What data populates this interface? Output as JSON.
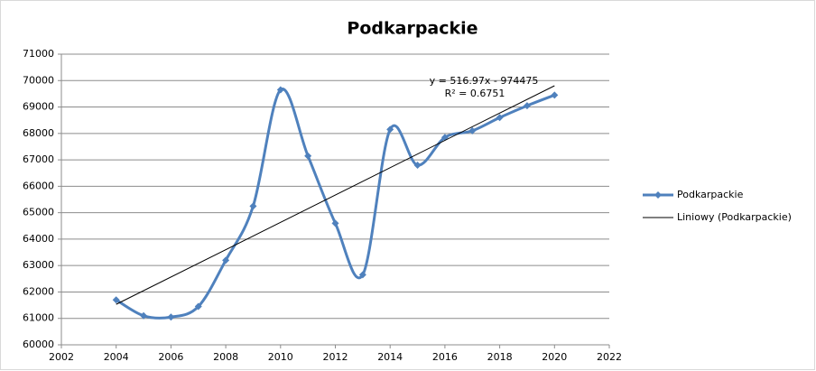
{
  "chart_data": {
    "type": "scatter",
    "title": "Podkarpackie",
    "x": [
      2004,
      2005,
      2006,
      2007,
      2008,
      2009,
      2010,
      2011,
      2012,
      2013,
      2014,
      2015,
      2016,
      2017,
      2018,
      2019,
      2020
    ],
    "series": [
      {
        "name": "Podkarpackie",
        "color": "#4f81bd",
        "smooth": true,
        "values": [
          61700,
          61100,
          61050,
          61450,
          63200,
          65250,
          69650,
          67150,
          64600,
          62650,
          68150,
          66800,
          67850,
          68100,
          68600,
          69050,
          69450
        ]
      }
    ],
    "trendline": {
      "name": "Liniowy (Podkarpackie)",
      "color": "#000000",
      "slope": 516.97,
      "intercept": -974475,
      "equation": "y = 516.97x - 974475",
      "r2_label": "R² = 0.6751"
    },
    "xlim": [
      2002,
      2022
    ],
    "xticks": [
      2002,
      2004,
      2006,
      2008,
      2010,
      2012,
      2014,
      2016,
      2018,
      2020,
      2022
    ],
    "ylim": [
      60000,
      71000
    ],
    "yticks": [
      60000,
      61000,
      62000,
      63000,
      64000,
      65000,
      66000,
      67000,
      68000,
      69000,
      70000,
      71000
    ],
    "grid": true,
    "legend": "right"
  }
}
